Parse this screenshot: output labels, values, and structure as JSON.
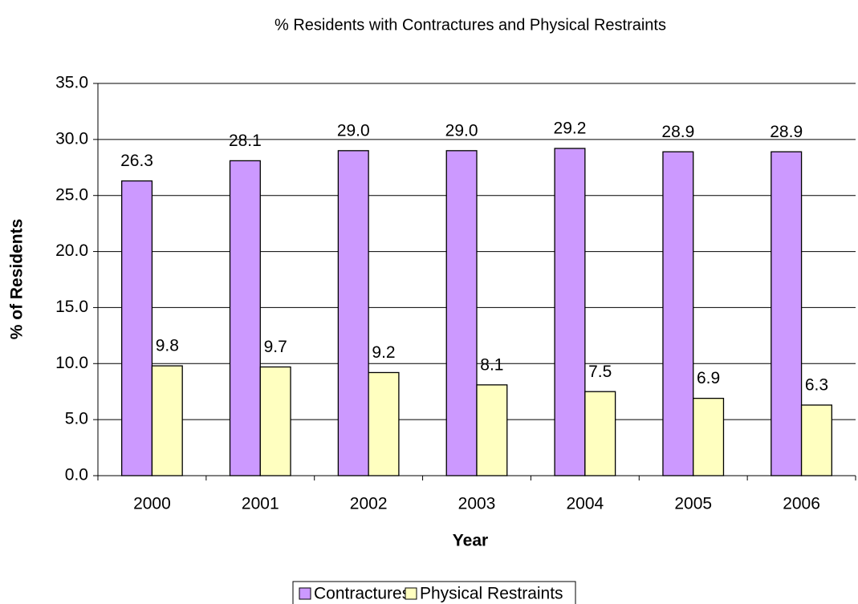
{
  "chart_data": {
    "type": "bar",
    "title": "% Residents with Contractures and Physical Restraints",
    "x_label": "Year",
    "y_label": "% of Residents",
    "categories": [
      "2000",
      "2001",
      "2002",
      "2003",
      "2004",
      "2005",
      "2006"
    ],
    "series": [
      {
        "name": "Contractures",
        "color": "#cc99ff",
        "values": [
          26.3,
          28.1,
          29.0,
          29.0,
          29.2,
          28.9,
          28.9
        ],
        "value_labels": [
          "26.3",
          "28.1",
          "29.0",
          "29.0",
          "29.2",
          "28.9",
          "28.9"
        ]
      },
      {
        "name": "Physical Restraints",
        "color": "#ffffc0",
        "values": [
          9.8,
          9.7,
          9.2,
          8.1,
          7.5,
          6.9,
          6.3
        ],
        "value_labels": [
          "9.8",
          "9.7",
          "9.2",
          "8.1",
          "7.5",
          "6.9",
          "6.3"
        ]
      }
    ],
    "ylim": [
      0,
      35
    ],
    "yticks": [
      {
        "value": 0,
        "label": "0.0"
      },
      {
        "value": 5,
        "label": "5.0"
      },
      {
        "value": 10,
        "label": "10.0"
      },
      {
        "value": 15,
        "label": "15.0"
      },
      {
        "value": 20,
        "label": "20.0"
      },
      {
        "value": 25,
        "label": "25.0"
      },
      {
        "value": 30,
        "label": "30.0"
      },
      {
        "value": 35,
        "label": "35.0"
      }
    ],
    "grid": true,
    "legend": "bottom"
  }
}
